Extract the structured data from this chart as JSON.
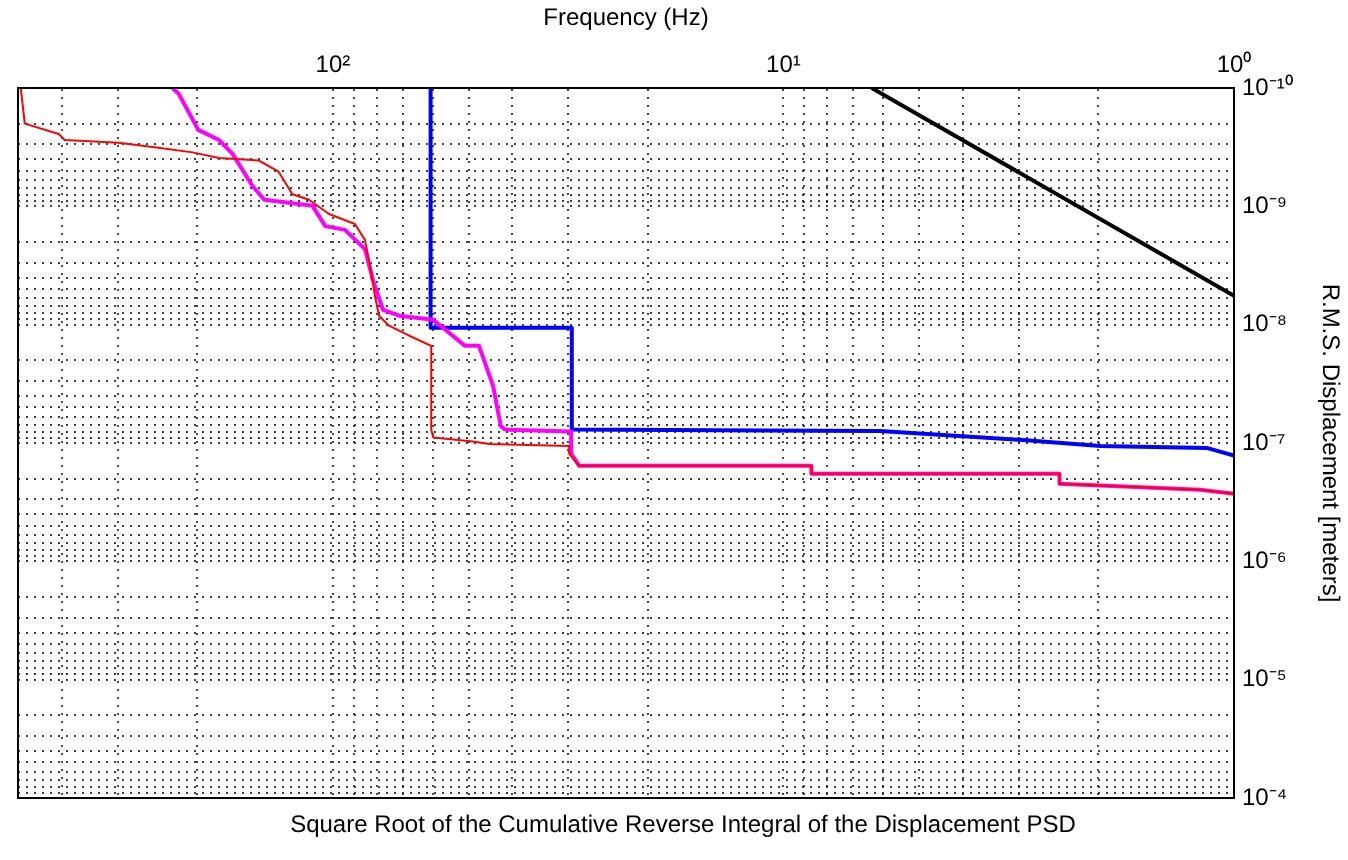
{
  "chart_data": {
    "type": "line",
    "title": "Square Root of the Cumulative Reverse Integral of the Displacement PSD",
    "xlabel": "Frequency (Hz)",
    "ylabel": "R.M.S. Displacement [meters]",
    "log": "xy",
    "grid": true,
    "marker": "none",
    "line_style": "solid",
    "xlim": [
      500,
      1
    ],
    "ylim": [
      0.0001,
      1e-10
    ],
    "xticks": [
      {
        "value": 1,
        "label": "10⁰"
      },
      {
        "value": 2,
        "label": null
      },
      {
        "value": 3,
        "label": null
      },
      {
        "value": 4,
        "label": null
      },
      {
        "value": 5,
        "label": null
      },
      {
        "value": 6,
        "label": null
      },
      {
        "value": 7,
        "label": null
      },
      {
        "value": 8,
        "label": null
      },
      {
        "value": 9,
        "label": null
      },
      {
        "value": 10,
        "label": "10¹"
      },
      {
        "value": 20,
        "label": null
      },
      {
        "value": 30,
        "label": null
      },
      {
        "value": 40,
        "label": null
      },
      {
        "value": 50,
        "label": null
      },
      {
        "value": 60,
        "label": null
      },
      {
        "value": 70,
        "label": null
      },
      {
        "value": 80,
        "label": null
      },
      {
        "value": 90,
        "label": null
      },
      {
        "value": 100,
        "label": "10²"
      },
      {
        "value": 200,
        "label": null
      },
      {
        "value": 300,
        "label": null
      },
      {
        "value": 400,
        "label": null
      }
    ],
    "yticks": [
      {
        "value": 1e-10,
        "label": "10⁻¹⁰"
      },
      {
        "value": 2e-10,
        "label": null
      },
      {
        "value": 3e-10,
        "label": null
      },
      {
        "value": 4e-10,
        "label": null
      },
      {
        "value": 5e-10,
        "label": null
      },
      {
        "value": 6e-10,
        "label": null
      },
      {
        "value": 7e-10,
        "label": null
      },
      {
        "value": 8e-10,
        "label": null
      },
      {
        "value": 9e-10,
        "label": null
      },
      {
        "value": 1e-09,
        "label": "10⁻⁹"
      },
      {
        "value": 2e-09,
        "label": null
      },
      {
        "value": 3e-09,
        "label": null
      },
      {
        "value": 4e-09,
        "label": null
      },
      {
        "value": 5e-09,
        "label": null
      },
      {
        "value": 6e-09,
        "label": null
      },
      {
        "value": 7e-09,
        "label": null
      },
      {
        "value": 8e-09,
        "label": null
      },
      {
        "value": 9e-09,
        "label": null
      },
      {
        "value": 1e-08,
        "label": "10⁻⁸"
      },
      {
        "value": 2e-08,
        "label": null
      },
      {
        "value": 3e-08,
        "label": null
      },
      {
        "value": 4e-08,
        "label": null
      },
      {
        "value": 5e-08,
        "label": null
      },
      {
        "value": 6e-08,
        "label": null
      },
      {
        "value": 7e-08,
        "label": null
      },
      {
        "value": 8e-08,
        "label": null
      },
      {
        "value": 9e-08,
        "label": null
      },
      {
        "value": 1e-07,
        "label": "10⁻⁷"
      },
      {
        "value": 2e-07,
        "label": null
      },
      {
        "value": 3e-07,
        "label": null
      },
      {
        "value": 4e-07,
        "label": null
      },
      {
        "value": 5e-07,
        "label": null
      },
      {
        "value": 6e-07,
        "label": null
      },
      {
        "value": 7e-07,
        "label": null
      },
      {
        "value": 8e-07,
        "label": null
      },
      {
        "value": 9e-07,
        "label": null
      },
      {
        "value": 1e-06,
        "label": "10⁻⁶"
      },
      {
        "value": 2e-06,
        "label": null
      },
      {
        "value": 3e-06,
        "label": null
      },
      {
        "value": 4e-06,
        "label": null
      },
      {
        "value": 5e-06,
        "label": null
      },
      {
        "value": 6e-06,
        "label": null
      },
      {
        "value": 7e-06,
        "label": null
      },
      {
        "value": 8e-06,
        "label": null
      },
      {
        "value": 9e-06,
        "label": null
      },
      {
        "value": 1e-05,
        "label": "10⁻⁵"
      },
      {
        "value": 2e-05,
        "label": null
      },
      {
        "value": 3e-05,
        "label": null
      },
      {
        "value": 4e-05,
        "label": null
      },
      {
        "value": 5e-05,
        "label": null
      },
      {
        "value": 6e-05,
        "label": null
      },
      {
        "value": 7e-05,
        "label": null
      },
      {
        "value": 8e-05,
        "label": null
      },
      {
        "value": 9e-05,
        "label": null
      },
      {
        "value": 0.0001,
        "label": "10⁻⁴"
      }
    ],
    "series": [
      {
        "color": "#000000",
        "x": [
          1,
          6.37
        ],
        "values": [
          5.7e-09,
          1e-10
        ]
      },
      {
        "color": "#0000ff",
        "x": [
          1,
          1.15,
          1.98,
          2.99,
          6.1,
          29.5,
          29.5,
          60.7,
          60.7
        ],
        "values": [
          1.28e-07,
          1.1e-07,
          1.06e-07,
          9.4e-08,
          7.9e-08,
          7.7e-08,
          1.06e-08,
          1.06e-08,
          1e-10
        ]
      },
      {
        "color": "#ff00ff",
        "x": [
          1,
          1.19,
          2.44,
          2.44,
          8.67,
          8.67,
          28.4,
          29.6,
          29.6,
          41.5,
          42.4,
          44.1,
          47.4,
          50.9,
          59.9,
          71.3,
          77.4,
          81.5,
          84.9,
          94,
          104,
          111,
          142,
          151,
          167,
          179,
          199,
          220,
          227
        ],
        "values": [
          2.69e-07,
          2.48e-07,
          2.21e-07,
          1.82e-07,
          1.82e-07,
          1.56e-07,
          1.56e-07,
          1.23e-07,
          8e-08,
          7.7e-08,
          7.2e-08,
          3.3e-08,
          1.51e-08,
          1.51e-08,
          9.1e-09,
          8.4e-09,
          7.5e-09,
          4.2e-09,
          2.3e-09,
          1.58e-09,
          1.47e-09,
          9.9e-10,
          8.8e-10,
          6.7e-10,
          3.6e-10,
          2.75e-10,
          2.26e-10,
          1.12e-10,
          1e-10
        ]
      },
      {
        "color": "#ff0000",
        "x": [
          1,
          1.19,
          2.44,
          2.44,
          8.67,
          8.67,
          28.4,
          29.9,
          29.9,
          45,
          48.9,
          59.9,
          60.5,
          60.5,
          67.7,
          75.1,
          79,
          80.7,
          82.4,
          84.9,
          89.4,
          102,
          113,
          123,
          132,
          146,
          179,
          205,
          244,
          299,
          394,
          406,
          483,
          493
        ],
        "values": [
          2.69e-07,
          2.48e-07,
          2.21e-07,
          1.82e-07,
          1.82e-07,
          1.56e-07,
          1.56e-07,
          1.23e-07,
          1.06e-07,
          1.02e-07,
          9.7e-08,
          9e-08,
          7.7e-08,
          1.51e-08,
          1.24e-08,
          1.02e-08,
          8.4e-09,
          5.7e-09,
          3.4e-09,
          1.92e-09,
          1.41e-09,
          1.16e-09,
          8.8e-10,
          7.9e-10,
          5.1e-10,
          4.1e-10,
          3.9e-10,
          3.5e-10,
          3.2e-10,
          2.9e-10,
          2.75e-10,
          2.45e-10,
          2e-10,
          1e-10
        ]
      }
    ]
  }
}
